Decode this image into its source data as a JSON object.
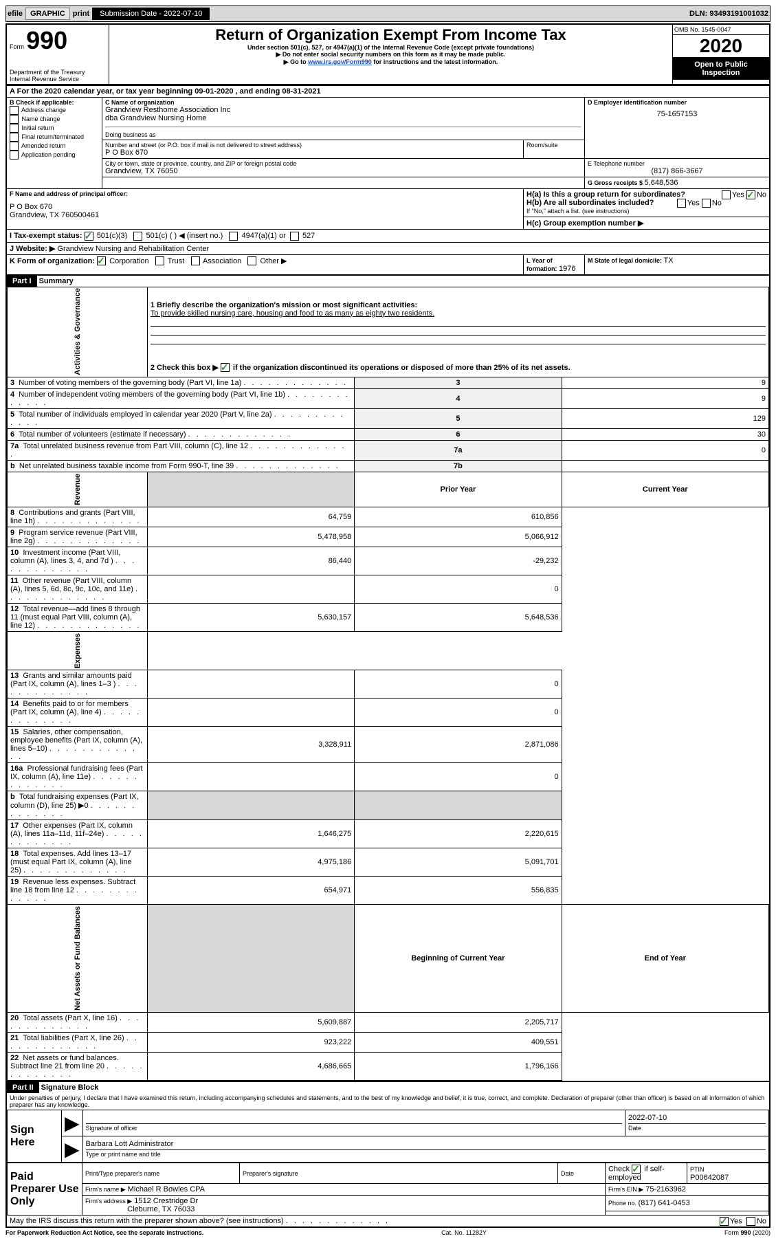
{
  "top": {
    "efile": "efile",
    "graphic": "GRAPHIC",
    "print": "print",
    "sub_label": "Submission Date - ",
    "sub_date": "2022-07-10",
    "dln_label": "DLN: ",
    "dln": "93493191001032"
  },
  "header": {
    "form_word": "Form",
    "form_number": "990",
    "dept": "Department of the Treasury\nInternal Revenue Service",
    "title": "Return of Organization Exempt From Income Tax",
    "subtitle": "Under section 501(c), 527, or 4947(a)(1) of the Internal Revenue Code (except private foundations)",
    "note1": "▶ Do not enter social security numbers on this form as it may be made public.",
    "note2_pre": "▶ Go to ",
    "note2_link": "www.irs.gov/Form990",
    "note2_post": " for instructions and the latest information.",
    "omb_label": "OMB No. 1545-0047",
    "year": "2020",
    "inspection": "Open to Public Inspection"
  },
  "period": {
    "line_a": "For the 2020 calendar year, or tax year beginning 09-01-2020    , and ending 08-31-2021",
    "b_intro": "B Check if applicable:",
    "b_opts": [
      "Address change",
      "Name change",
      "Initial return",
      "Final return/terminated",
      "Amended return",
      "Application pending"
    ],
    "c_name_label": "C Name of organization",
    "c_name": "Grandview Resthome Association Inc",
    "c_dba": "dba Grandview Nursing Home",
    "dba_label": "Doing business as",
    "street_label": "Number and street (or P.O. box if mail is not delivered to street address)",
    "room_label": "Room/suite",
    "street": "P O Box 670",
    "city_label": "City or town, state or province, country, and ZIP or foreign postal code",
    "city": "Grandview, TX  76050",
    "d_ein_label": "D Employer identification number",
    "d_ein": "75-1657153",
    "e_tel_label": "E Telephone number",
    "e_tel": "(817) 866-3667",
    "g_label": "G Gross receipts $ ",
    "g_val": "5,648,536",
    "f_label": "F Name and address of principal officer:",
    "f_addr1": "P O Box 670",
    "f_addr2": "Grandview, TX  760500461",
    "ha_label": "H(a)  Is this a group return for subordinates?",
    "hb_label": "H(b)  Are all subordinates included?",
    "h_note": "If \"No,\" attach a list. (see instructions)",
    "hc_label": "H(c)  Group exemption number ▶",
    "yes": "Yes",
    "no": "No",
    "i_label": "I  Tax-exempt status:",
    "i_501c3": "501(c)(3)",
    "i_501c": "501(c) (   ) ◀ (insert no.)",
    "i_4947": "4947(a)(1) or",
    "i_527": "527",
    "j_label": "J  Website: ▶",
    "j_val": "Grandview Nursing and Rehabilitation Center",
    "k_label": "K Form of organization:",
    "k_opts": [
      "Corporation",
      "Trust",
      "Association",
      "Other ▶"
    ],
    "l_label": "L Year of formation: ",
    "l_val": "1976",
    "m_label": "M State of legal domicile: ",
    "m_val": "TX"
  },
  "part1": {
    "header": "Part I",
    "title": "Summary",
    "q1_label": "1  Briefly describe the organization's mission or most significant activities:",
    "q1_val": "To provide skilled nursing care, housing and food to as many as eighty two residents.",
    "q2": "2  Check this box ▶        if the organization discontinued its operations or disposed of more than 25% of its net assets.",
    "vert_activities": "Activities & Governance",
    "vert_revenue": "Revenue",
    "vert_expenses": "Expenses",
    "vert_netassets": "Net Assets or Fund Balances",
    "rows_gov": [
      {
        "n": "3",
        "t": "Number of voting members of the governing body (Part VI, line 1a)",
        "box": "3",
        "v": "9"
      },
      {
        "n": "4",
        "t": "Number of independent voting members of the governing body (Part VI, line 1b)",
        "box": "4",
        "v": "9"
      },
      {
        "n": "5",
        "t": "Total number of individuals employed in calendar year 2020 (Part V, line 2a)",
        "box": "5",
        "v": "129"
      },
      {
        "n": "6",
        "t": "Total number of volunteers (estimate if necessary)",
        "box": "6",
        "v": "30"
      },
      {
        "n": "7a",
        "t": "Total unrelated business revenue from Part VIII, column (C), line 12",
        "box": "7a",
        "v": "0"
      },
      {
        "n": "b",
        "t": "Net unrelated business taxable income from Form 990-T, line 39",
        "box": "7b",
        "v": ""
      }
    ],
    "col_prior": "Prior Year",
    "col_current": "Current Year",
    "rows_rev": [
      {
        "n": "8",
        "t": "Contributions and grants (Part VIII, line 1h)",
        "p": "64,759",
        "c": "610,856"
      },
      {
        "n": "9",
        "t": "Program service revenue (Part VIII, line 2g)",
        "p": "5,478,958",
        "c": "5,066,912"
      },
      {
        "n": "10",
        "t": "Investment income (Part VIII, column (A), lines 3, 4, and 7d )",
        "p": "86,440",
        "c": "-29,232"
      },
      {
        "n": "11",
        "t": "Other revenue (Part VIII, column (A), lines 5, 6d, 8c, 9c, 10c, and 11e)",
        "p": "",
        "c": "0"
      },
      {
        "n": "12",
        "t": "Total revenue—add lines 8 through 11 (must equal Part VIII, column (A), line 12)",
        "p": "5,630,157",
        "c": "5,648,536"
      }
    ],
    "rows_exp": [
      {
        "n": "13",
        "t": "Grants and similar amounts paid (Part IX, column (A), lines 1–3 )",
        "p": "",
        "c": "0"
      },
      {
        "n": "14",
        "t": "Benefits paid to or for members (Part IX, column (A), line 4)",
        "p": "",
        "c": "0"
      },
      {
        "n": "15",
        "t": "Salaries, other compensation, employee benefits (Part IX, column (A), lines 5–10)",
        "p": "3,328,911",
        "c": "2,871,086"
      },
      {
        "n": "16a",
        "t": "Professional fundraising fees (Part IX, column (A), line 11e)",
        "p": "",
        "c": "0"
      },
      {
        "n": "b",
        "t": "Total fundraising expenses (Part IX, column (D), line 25) ▶0",
        "p": "shaded",
        "c": "shaded"
      },
      {
        "n": "17",
        "t": "Other expenses (Part IX, column (A), lines 11a–11d, 11f–24e)",
        "p": "1,646,275",
        "c": "2,220,615"
      },
      {
        "n": "18",
        "t": "Total expenses. Add lines 13–17 (must equal Part IX, column (A), line 25)",
        "p": "4,975,186",
        "c": "5,091,701"
      },
      {
        "n": "19",
        "t": "Revenue less expenses. Subtract line 18 from line 12",
        "p": "654,971",
        "c": "556,835"
      }
    ],
    "col_beg": "Beginning of Current Year",
    "col_end": "End of Year",
    "rows_net": [
      {
        "n": "20",
        "t": "Total assets (Part X, line 16)",
        "p": "5,609,887",
        "c": "2,205,717"
      },
      {
        "n": "21",
        "t": "Total liabilities (Part X, line 26)",
        "p": "923,222",
        "c": "409,551"
      },
      {
        "n": "22",
        "t": "Net assets or fund balances. Subtract line 21 from line 20",
        "p": "4,686,665",
        "c": "1,796,166"
      }
    ]
  },
  "part2": {
    "header": "Part II",
    "title": "Signature Block",
    "declaration": "Under penalties of perjury, I declare that I have examined this return, including accompanying schedules and statements, and to the best of my knowledge and belief, it is true, correct, and complete. Declaration of preparer (other than officer) is based on all information of which preparer has any knowledge.",
    "sign_here": "Sign Here",
    "sig_officer": "Signature of officer",
    "date_label": "Date",
    "sig_date": "2022-07-10",
    "officer_name": "Barbara Lott  Administrator",
    "type_label": "Type or print name and title",
    "paid_label": "Paid Preparer Use Only",
    "prep_name_label": "Print/Type preparer's name",
    "prep_sig_label": "Preparer's signature",
    "check_self": "Check        if self-employed",
    "ptin_label": "PTIN",
    "ptin": "P00642087",
    "firm_name_label": "Firm's name     ▶",
    "firm_name": "Michael R Bowles CPA",
    "firm_ein_label": "Firm's EIN ▶",
    "firm_ein": "75-2163962",
    "firm_addr_label": "Firm's address ▶",
    "firm_addr1": "1512 Crestridge Dr",
    "firm_addr2": "Cleburne, TX  76033",
    "phone_label": "Phone no. ",
    "phone": "(817) 641-0453",
    "discuss": "May the IRS discuss this return with the preparer shown above? (see instructions)",
    "paperwork": "For Paperwork Reduction Act Notice, see the separate instructions.",
    "catno": "Cat. No. 11282Y",
    "formfoot": "Form 990 (2020)"
  },
  "colors": {
    "header_bg": "#d8d8d8",
    "check_green": "#3c8c3c",
    "link_blue": "#1a4bb3"
  }
}
